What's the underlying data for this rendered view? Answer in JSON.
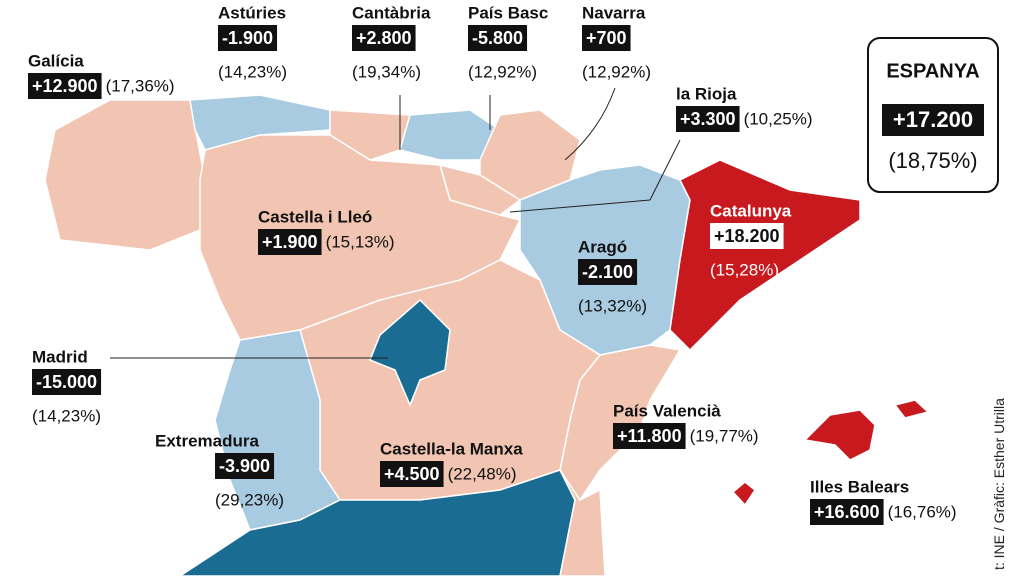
{
  "regions": [
    {
      "name": "Galícia",
      "change": "+12.900",
      "pct": "(17,36%)"
    },
    {
      "name": "Astúries",
      "change": "-1.900",
      "pct": "(14,23%)"
    },
    {
      "name": "Cantàbria",
      "change": "+2.800",
      "pct": "(19,34%)"
    },
    {
      "name": "País Basc",
      "change": "-5.800",
      "pct": "(12,92%)"
    },
    {
      "name": "Navarra",
      "change": "+700",
      "pct": "(12,92%)"
    },
    {
      "name": "la Rioja",
      "change": "+3.300",
      "pct": "(10,25%)"
    },
    {
      "name": "Castella i Lleó",
      "change": "+1.900",
      "pct": "(15,13%)"
    },
    {
      "name": "Aragó",
      "change": "-2.100",
      "pct": "(13,32%)"
    },
    {
      "name": "Catalunya",
      "change": "+18.200",
      "pct": "(15,28%)"
    },
    {
      "name": "Madrid",
      "change": "-15.000",
      "pct": "(14,23%)"
    },
    {
      "name": "Extremadura",
      "change": "-3.900",
      "pct": "(29,23%)"
    },
    {
      "name": "Castella-la Manxa",
      "change": "+4.500",
      "pct": "(22,48%)"
    },
    {
      "name": "País Valencià",
      "change": "+11.800",
      "pct": "(19,77%)"
    },
    {
      "name": "Illes Balears",
      "change": "+16.600",
      "pct": "(16,76%)"
    }
  ],
  "total": {
    "name": "ESPANYA",
    "change": "+17.200",
    "pct": "(18,75%)"
  },
  "credit": "t: INE / Gràfic: Esther Utrilla"
}
